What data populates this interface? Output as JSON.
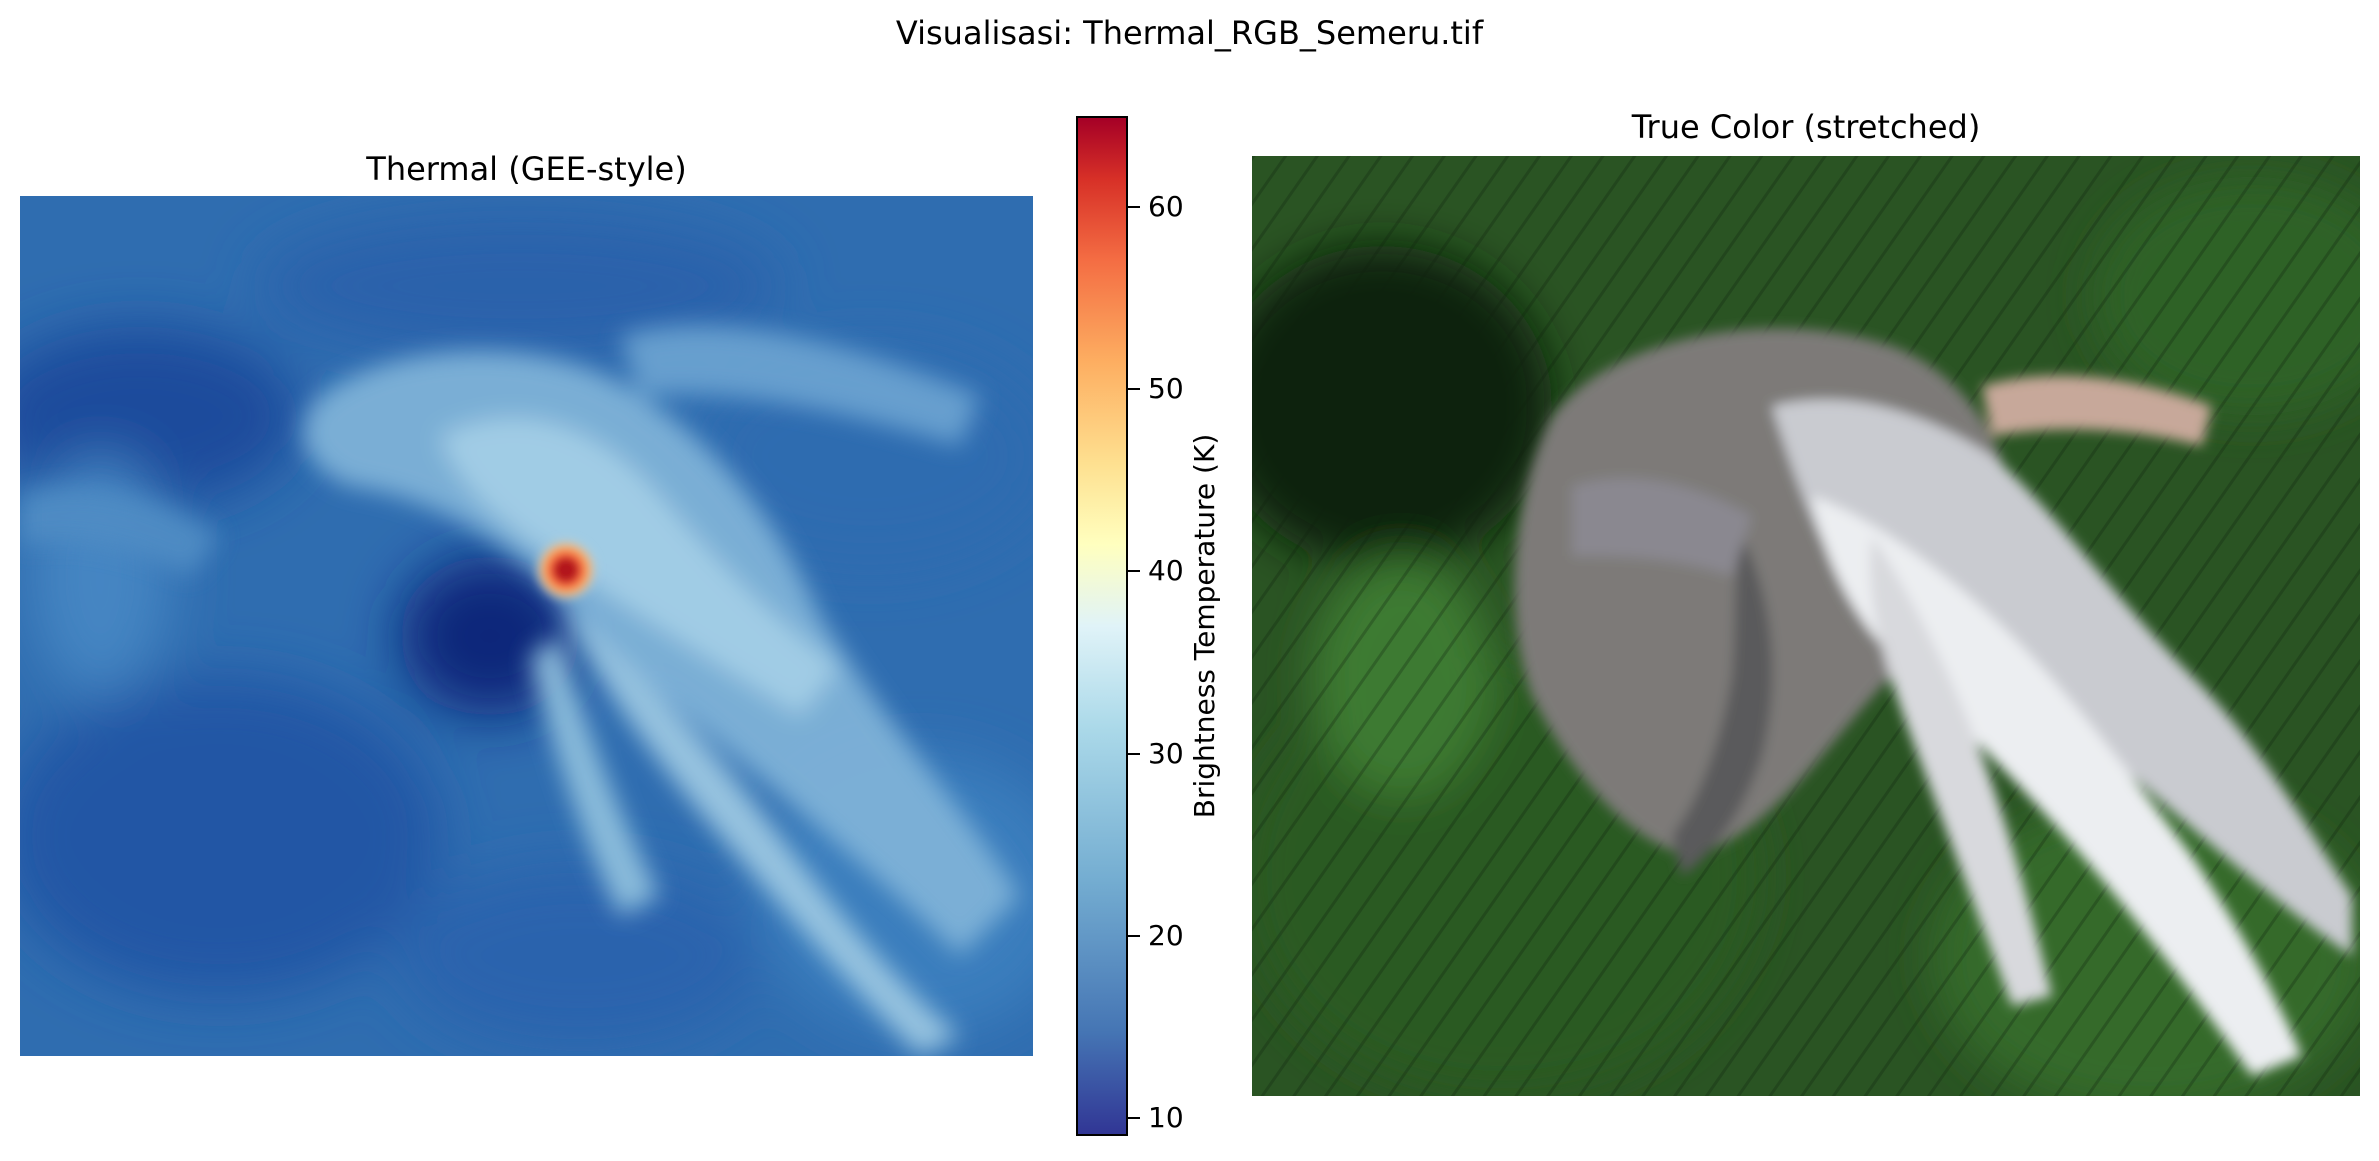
{
  "figure": {
    "suptitle": "Visualisasi: Thermal_RGB_Semeru.tif"
  },
  "chart_data": [
    {
      "type": "heatmap",
      "title": "Thermal (GEE-style)",
      "colormap": "RdYlBu_r",
      "axes": "off",
      "colorbar": {
        "label": "Brightness Temperature (K)",
        "range": [
          9,
          65
        ],
        "ticks": [
          10,
          20,
          30,
          40,
          50,
          60
        ],
        "placement": "right"
      },
      "hotspot_value": 62,
      "background_range": [
        12,
        35
      ]
    },
    {
      "type": "image",
      "title": "True Color (stretched)",
      "axes": "off",
      "colors": {
        "forest": "#1f3d1a",
        "ash": "#8c8a86",
        "snow_like": "#e8eaec"
      }
    }
  ]
}
